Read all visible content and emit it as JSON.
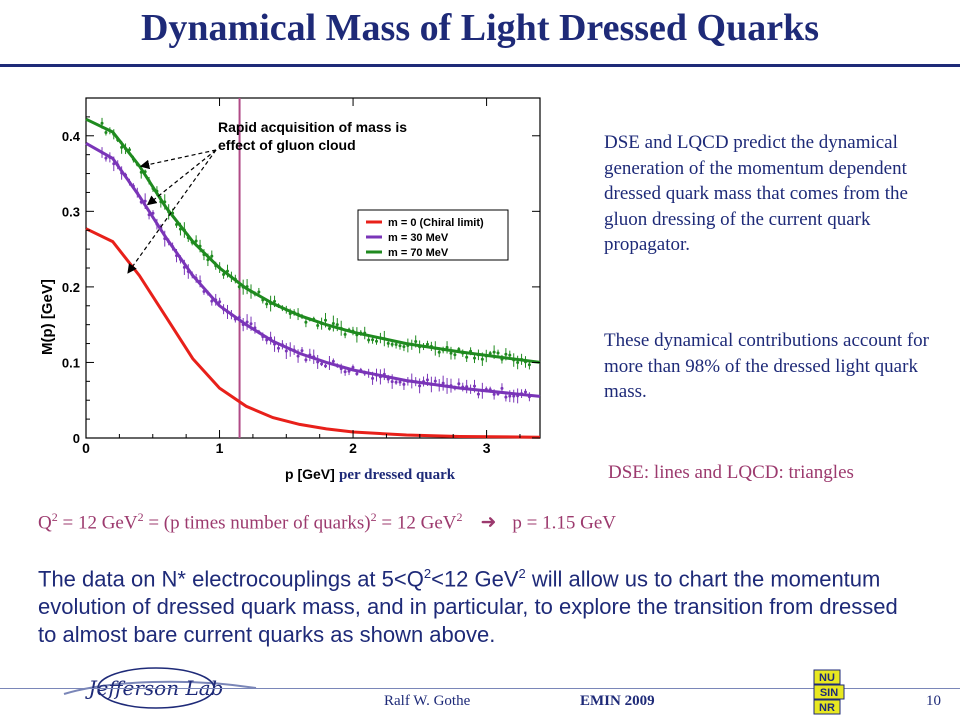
{
  "slide": {
    "title": "Dynamical Mass of Light Dressed Quarks",
    "right_text_1": "DSE and LQCD predict  the dynamical generation of the momentum dependent dressed quark mass that comes from the gluon dressing of the current quark propagator.",
    "right_text_2": "These dynamical contributions account for more than 98% of the dressed light quark mass.",
    "caption": "DSE: lines and LQCD: triangles",
    "formula": {
      "q": "Q",
      "eq1": " = 12 GeV",
      "eq2": " = (p times number of quarks)",
      "eq3": " = 12 GeV",
      "sup2": "2",
      "arrow": "➜",
      "result": "p = 1.15 GeV"
    },
    "paragraph": {
      "part1": "The data on N* electrocouplings at 5<Q",
      "part2": "<12 GeV",
      "part3": " will allow us to chart the momentum evolution of dressed quark mass, and in particular, to explore the transition from dressed to almost bare current quarks as shown above.",
      "sup2": "2"
    },
    "footer": {
      "author": "Ralf  W. Gothe",
      "conference": "EMIN 2009",
      "page": "10",
      "logo_text": "Jefferson Lab",
      "emin_logo": [
        "NU",
        "SIN",
        "NR"
      ]
    }
  },
  "chart_data": {
    "type": "line",
    "xlabel": "p [GeV]",
    "xlabel_suffix": " per dressed quark",
    "ylabel": "M(p) [GeV]",
    "xlim": [
      0,
      3.4
    ],
    "ylim": [
      0,
      0.45
    ],
    "x_ticks": [
      "0",
      "1",
      "2",
      "3"
    ],
    "y_ticks": [
      "0",
      "0.1",
      "0.2",
      "0.3",
      "0.4"
    ],
    "vline_x": 1.15,
    "annotation": [
      "Rapid acquisition of mass is",
      "effect of gluon cloud"
    ],
    "legend_position": "right",
    "series": [
      {
        "name": "m = 0 (Chiral limit)",
        "color": "#e8201a",
        "x": [
          0,
          0.2,
          0.4,
          0.6,
          0.8,
          1.0,
          1.2,
          1.4,
          1.6,
          1.8,
          2.0,
          2.4,
          2.8,
          3.4
        ],
        "y": [
          0.277,
          0.26,
          0.215,
          0.16,
          0.105,
          0.066,
          0.042,
          0.027,
          0.018,
          0.012,
          0.008,
          0.004,
          0.002,
          0.001
        ]
      },
      {
        "name": "m = 30 MeV",
        "color": "#7a35b8",
        "x": [
          0,
          0.2,
          0.4,
          0.6,
          0.8,
          1.0,
          1.2,
          1.4,
          1.6,
          1.8,
          2.0,
          2.4,
          2.8,
          3.4
        ],
        "y": [
          0.39,
          0.37,
          0.32,
          0.265,
          0.215,
          0.175,
          0.15,
          0.128,
          0.112,
          0.1,
          0.09,
          0.076,
          0.066,
          0.055
        ]
      },
      {
        "name": "m = 70 MeV",
        "color": "#1f8a1f",
        "x": [
          0,
          0.2,
          0.4,
          0.6,
          0.8,
          1.0,
          1.2,
          1.4,
          1.6,
          1.8,
          2.0,
          2.4,
          2.8,
          3.4
        ],
        "y": [
          0.422,
          0.405,
          0.36,
          0.305,
          0.26,
          0.225,
          0.198,
          0.178,
          0.162,
          0.15,
          0.14,
          0.125,
          0.114,
          0.1
        ]
      }
    ]
  }
}
